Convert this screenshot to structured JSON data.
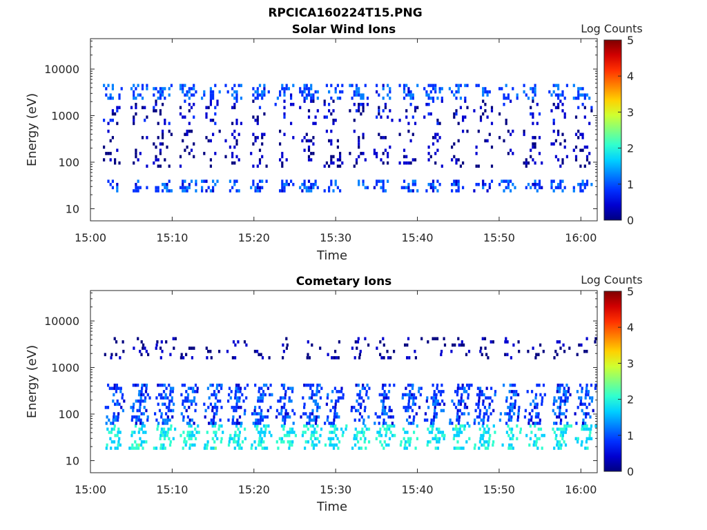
{
  "figure": {
    "title": "RPCICA160224T15.PNG"
  },
  "colormap": [
    "#00007f",
    "#0000d0",
    "#0030ff",
    "#0080ff",
    "#00d0ff",
    "#30ffcf",
    "#80ff7f",
    "#cfff30",
    "#ffd000",
    "#ff8000",
    "#ff3000",
    "#d00000",
    "#7f0000"
  ],
  "chart_data": [
    {
      "type": "heatmap",
      "title": "Solar Wind Ions",
      "xlabel": "Time",
      "ylabel": "Energy (eV)",
      "colorbar_label": "Log Counts",
      "colorbar_ticks": [
        "0",
        "1",
        "2",
        "3",
        "4",
        "5"
      ],
      "clim": [
        0,
        5
      ],
      "x_ticks": [
        "15:00",
        "15:10",
        "15:20",
        "15:30",
        "15:40",
        "15:50",
        "16:00"
      ],
      "x_range": [
        "15:00",
        "16:02"
      ],
      "y_ticks": [
        "10",
        "100",
        "1000",
        "10000"
      ],
      "y_scale": "log",
      "y_range": [
        5.5,
        45000
      ],
      "scan_times_min": [
        2.6,
        5.7,
        8.7,
        11.7,
        14.6,
        17.5,
        20.6,
        23.6,
        26.6,
        29.6,
        32.7,
        35.7,
        38.8,
        41.8,
        44.9,
        47.9,
        51.0,
        54.0,
        57.1,
        60.1
      ],
      "bands": [
        {
          "e_min": 2200,
          "e_max": 4800,
          "level": 1.0
        },
        {
          "e_min": 700,
          "e_max": 2200,
          "level": 0.35
        },
        {
          "e_min": 80,
          "e_max": 500,
          "level": 0.2
        },
        {
          "e_min": 24,
          "e_max": 42,
          "level": 0.9
        }
      ]
    },
    {
      "type": "heatmap",
      "title": "Cometary Ions",
      "xlabel": "Time",
      "ylabel": "Energy (eV)",
      "colorbar_label": "Log Counts",
      "colorbar_ticks": [
        "0",
        "1",
        "2",
        "3",
        "4",
        "5"
      ],
      "clim": [
        0,
        5
      ],
      "x_ticks": [
        "15:00",
        "15:10",
        "15:20",
        "15:30",
        "15:40",
        "15:50",
        "16:00"
      ],
      "x_range": [
        "15:00",
        "16:02"
      ],
      "y_ticks": [
        "10",
        "100",
        "1000",
        "10000"
      ],
      "y_scale": "log",
      "y_range": [
        5.5,
        45000
      ],
      "scan_times_min": [
        2.6,
        5.7,
        8.7,
        11.7,
        14.6,
        17.5,
        20.6,
        23.6,
        26.6,
        29.6,
        32.7,
        35.7,
        38.8,
        41.8,
        44.9,
        47.9,
        51.0,
        54.0,
        57.1,
        60.1
      ],
      "bands": [
        {
          "e_min": 18,
          "e_max": 60,
          "level": 1.9
        },
        {
          "e_min": 60,
          "e_max": 450,
          "level": 0.9
        },
        {
          "e_min": 1500,
          "e_max": 4500,
          "level": 0.1
        }
      ]
    }
  ]
}
